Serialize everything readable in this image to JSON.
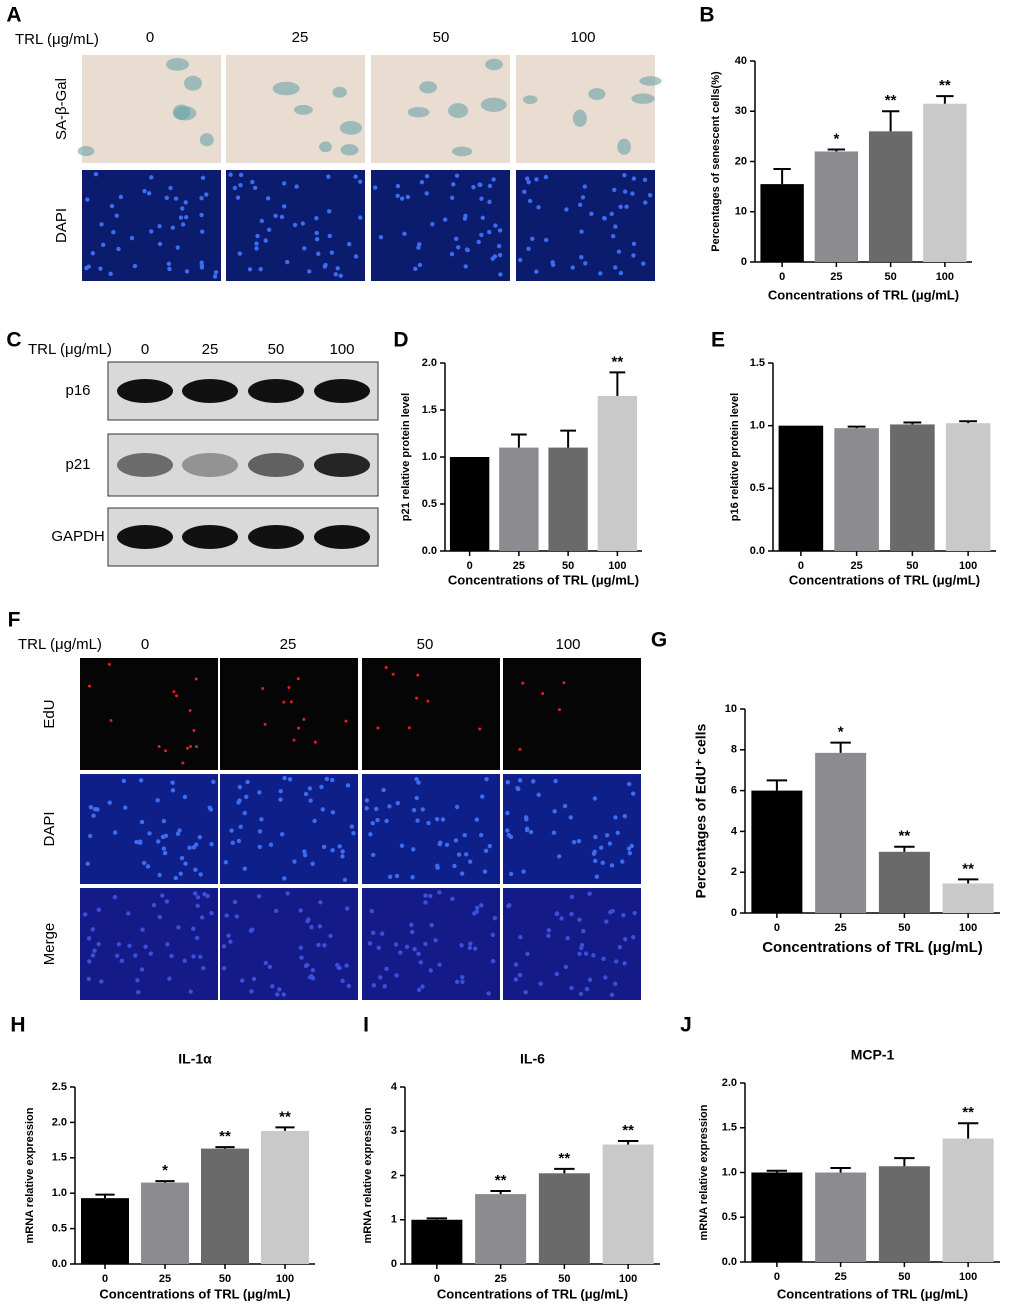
{
  "chart_data": [
    {
      "type": "bar",
      "panel_label": "B",
      "categories": [
        "0",
        "25",
        "50",
        "100"
      ],
      "values": [
        15.5,
        22,
        26,
        31.5
      ],
      "errors": [
        3,
        0.4,
        4,
        1.5
      ],
      "annotations": [
        null,
        "*",
        "**",
        "**"
      ],
      "colors": [
        "#000000",
        "#8c8c90",
        "#6a6a6a",
        "#c9c9c9"
      ],
      "xlabel": "Concentrations of TRL (μg/mL)",
      "ylabel": "Percentages of senescent cells(%)",
      "ylim": [
        0,
        40
      ],
      "yticks": [
        0,
        10,
        20,
        30,
        40
      ]
    },
    {
      "type": "bar",
      "panel_label": "D",
      "categories": [
        "0",
        "25",
        "50",
        "100"
      ],
      "values": [
        1.0,
        1.1,
        1.1,
        1.65
      ],
      "errors": [
        null,
        0.14,
        0.18,
        0.25
      ],
      "annotations": [
        null,
        null,
        null,
        "**"
      ],
      "colors": [
        "#000000",
        "#8c8c90",
        "#6a6a6a",
        "#c9c9c9"
      ],
      "xlabel": "Concentrations of TRL (μg/mL)",
      "ylabel": "p21 relative protein level",
      "ylim": [
        0,
        2
      ],
      "yticks": [
        {
          "value": 0,
          "label": "0.0"
        },
        0.5,
        {
          "value": 1,
          "label": "1.0"
        },
        1.5,
        {
          "value": 2,
          "label": "2.0"
        }
      ]
    },
    {
      "type": "bar",
      "panel_label": "E",
      "categories": [
        "0",
        "25",
        "50",
        "100"
      ],
      "values": [
        1.0,
        0.98,
        1.01,
        1.02
      ],
      "errors": [
        null,
        0.012,
        0.015,
        0.015
      ],
      "annotations": [
        null,
        null,
        null,
        null
      ],
      "colors": [
        "#000000",
        "#8c8c90",
        "#6a6a6a",
        "#c9c9c9"
      ],
      "xlabel": "Concentrations of TRL (μg/mL)",
      "ylabel": "p16 relative protein level",
      "ylim": [
        0,
        1.5
      ],
      "yticks": [
        {
          "value": 0,
          "label": "0.0"
        },
        0.5,
        {
          "value": 1,
          "label": "1.0"
        },
        1.5
      ]
    },
    {
      "type": "bar",
      "panel_label": "G",
      "categories": [
        "0",
        "25",
        "50",
        "100"
      ],
      "values": [
        6.0,
        7.85,
        3.0,
        1.45
      ],
      "errors": [
        0.5,
        0.5,
        0.25,
        0.2
      ],
      "annotations": [
        null,
        "*",
        "**",
        "**"
      ],
      "colors": [
        "#000000",
        "#8c8c90",
        "#6a6a6a",
        "#c9c9c9"
      ],
      "xlabel": "Concentrations of TRL (μg/mL)",
      "ylabel": "Percentages of EdU⁺ cells",
      "ylim": [
        0,
        10
      ],
      "yticks": [
        0,
        2,
        4,
        6,
        8,
        10
      ]
    },
    {
      "type": "bar",
      "panel_label": "H",
      "title": "IL-1α",
      "categories": [
        "0",
        "25",
        "50",
        "100"
      ],
      "values": [
        0.93,
        1.15,
        1.63,
        1.88
      ],
      "errors": [
        0.05,
        0.02,
        0.02,
        0.05
      ],
      "annotations": [
        null,
        "*",
        "**",
        "**"
      ],
      "colors": [
        "#000000",
        "#8c8c90",
        "#6a6a6a",
        "#c9c9c9"
      ],
      "xlabel": "Concentrations of TRL (μg/mL)",
      "ylabel": "mRNA relative expression",
      "ylim": [
        0,
        2.5
      ],
      "yticks": [
        {
          "value": 0,
          "label": "0.0"
        },
        0.5,
        {
          "value": 1,
          "label": "1.0"
        },
        1.5,
        {
          "value": 2,
          "label": "2.0"
        },
        2.5
      ]
    },
    {
      "type": "bar",
      "panel_label": "I",
      "title": "IL-6",
      "categories": [
        "0",
        "25",
        "50",
        "100"
      ],
      "values": [
        1.0,
        1.58,
        2.05,
        2.7
      ],
      "errors": [
        0.03,
        0.07,
        0.1,
        0.08
      ],
      "annotations": [
        null,
        "**",
        "**",
        "**"
      ],
      "colors": [
        "#000000",
        "#8c8c90",
        "#6a6a6a",
        "#c9c9c9"
      ],
      "xlabel": "Concentrations of TRL (μg/mL)",
      "ylabel": "mRNA relative expression",
      "ylim": [
        0,
        4
      ],
      "yticks": [
        0,
        1,
        2,
        3,
        4
      ]
    },
    {
      "type": "bar",
      "panel_label": "J",
      "title": "MCP-1",
      "categories": [
        "0",
        "25",
        "50",
        "100"
      ],
      "values": [
        1.0,
        1.0,
        1.07,
        1.38
      ],
      "errors": [
        0.02,
        0.05,
        0.09,
        0.17
      ],
      "annotations": [
        null,
        null,
        null,
        "**"
      ],
      "colors": [
        "#000000",
        "#8c8c90",
        "#6a6a6a",
        "#c9c9c9"
      ],
      "xlabel": "Concentrations of TRL (μg/mL)",
      "ylabel": "mRNA relative expression",
      "ylim": [
        0,
        2
      ],
      "yticks": [
        {
          "value": 0,
          "label": "0.0"
        },
        0.5,
        {
          "value": 1,
          "label": "1.0"
        },
        1.5,
        {
          "value": 2,
          "label": "2.0"
        }
      ]
    }
  ],
  "image_panels": [
    {
      "panel_label": "A",
      "condition_label": "TRL (μg/mL)",
      "columns": [
        "0",
        "25",
        "50",
        "100"
      ],
      "rows": [
        "SA-β-Gal",
        "DAPI"
      ]
    },
    {
      "panel_label": "C",
      "condition_label": "TRL (μg/mL)",
      "columns": [
        "0",
        "25",
        "50",
        "100"
      ],
      "rows": [
        "p16",
        "p21",
        "GAPDH"
      ]
    },
    {
      "panel_label": "F",
      "condition_label": "TRL (μg/mL)",
      "columns": [
        "0",
        "25",
        "50",
        "100"
      ],
      "rows": [
        "EdU",
        "DAPI",
        "Merge"
      ]
    }
  ]
}
